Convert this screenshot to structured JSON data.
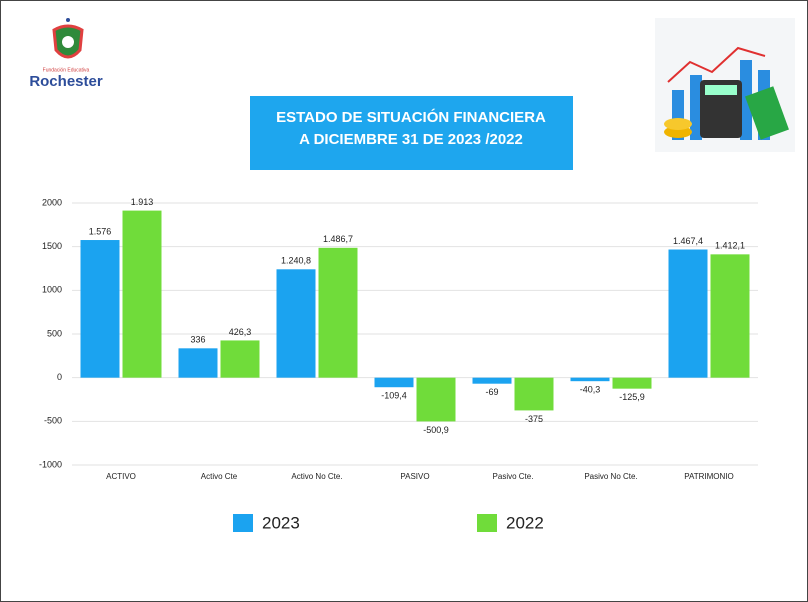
{
  "logo": {
    "caption": "Fundación Educativa",
    "name": "Rochester"
  },
  "chart_data": {
    "type": "bar",
    "title": [
      "ESTADO DE SITUACIÓN FINANCIERA",
      "A DICIEMBRE 31 DE 2023 /2022"
    ],
    "categories": [
      "ACTIVO",
      "Activo Cte",
      "Activo No Cte.",
      "PASIVO",
      "Pasivo Cte.",
      "Pasivo No Cte.",
      "PATRIMONIO"
    ],
    "series": [
      {
        "name": "2023",
        "color": "#1ba3f0",
        "values": [
          1576,
          336,
          1240.8,
          -109.4,
          -69,
          -40.3,
          1467.4
        ],
        "value_labels": [
          "1.576",
          "336",
          "1.240,8",
          "-109,4",
          "-69",
          "-40,3",
          "1.467,4"
        ]
      },
      {
        "name": "2022",
        "color": "#70dc3a",
        "values": [
          1913,
          426.3,
          1486.7,
          -500.9,
          -375,
          -125.9,
          1412.1
        ],
        "value_labels": [
          "1.913",
          "426,3",
          "1.486,7",
          "-500,9",
          "-375",
          "-125,9",
          "1.412,1"
        ]
      }
    ],
    "ylim": [
      -1000,
      2000
    ],
    "yticks": [
      -1000,
      -500,
      0,
      500,
      1000,
      1500,
      2000
    ],
    "grid": true
  }
}
